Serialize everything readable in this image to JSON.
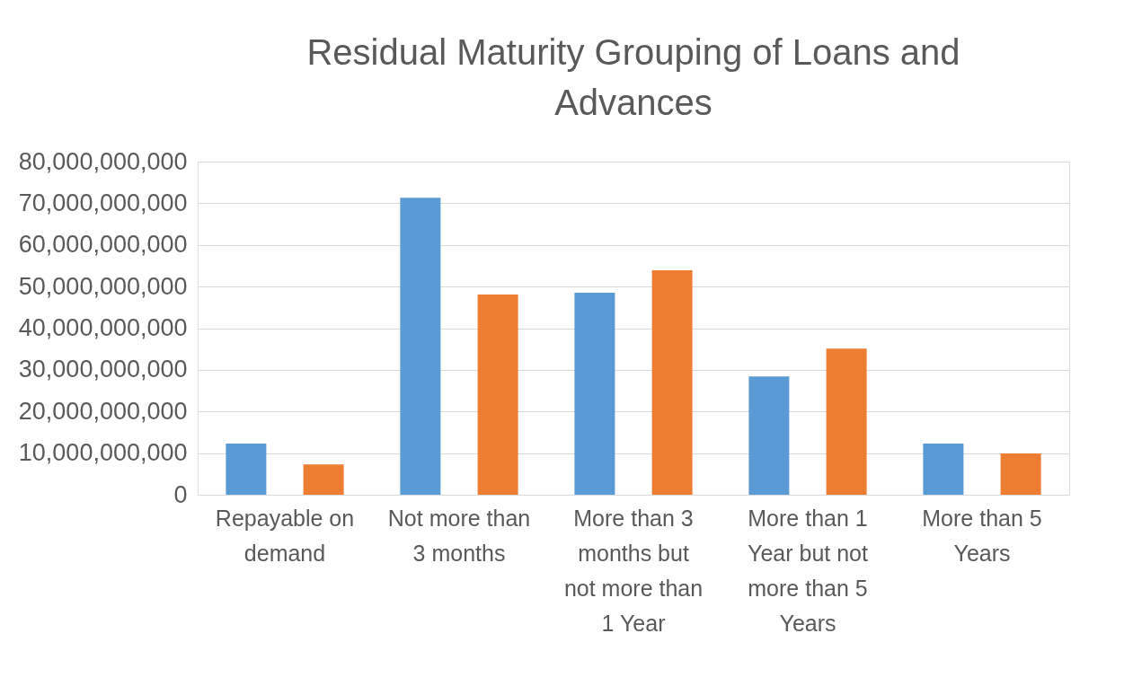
{
  "chart_data": {
    "type": "bar",
    "title": "Residual Maturity Grouping of Loans and Advances",
    "categories": [
      "Repayable on demand",
      "Not more than 3 months",
      "More than 3 months but not more than 1 Year",
      "More than 1 Year but not more than 5 Years",
      "More than 5 Years"
    ],
    "series": [
      {
        "color": "#5b9bd5",
        "values": [
          12300000000,
          71300000000,
          48500000000,
          28400000000,
          12300000000
        ]
      },
      {
        "color": "#ed7d31",
        "values": [
          7300000000,
          48100000000,
          53900000000,
          35100000000,
          9900000000
        ]
      }
    ],
    "ylim": [
      0,
      80000000000
    ],
    "yticks": [
      0,
      {
        "value": 10000000000,
        "label": "10,000,000,000"
      },
      {
        "value": 20000000000,
        "label": "20,000,000,000"
      },
      {
        "value": 30000000000,
        "label": "30,000,000,000"
      },
      {
        "value": 40000000000,
        "label": "40,000,000,000"
      },
      {
        "value": 50000000000,
        "label": "50,000,000,000"
      },
      {
        "value": 60000000000,
        "label": "60,000,000,000"
      },
      {
        "value": 70000000000,
        "label": "70,000,000,000"
      },
      {
        "value": 80000000000,
        "label": "80,000,000,000"
      }
    ],
    "grid": "y",
    "legend": false
  }
}
